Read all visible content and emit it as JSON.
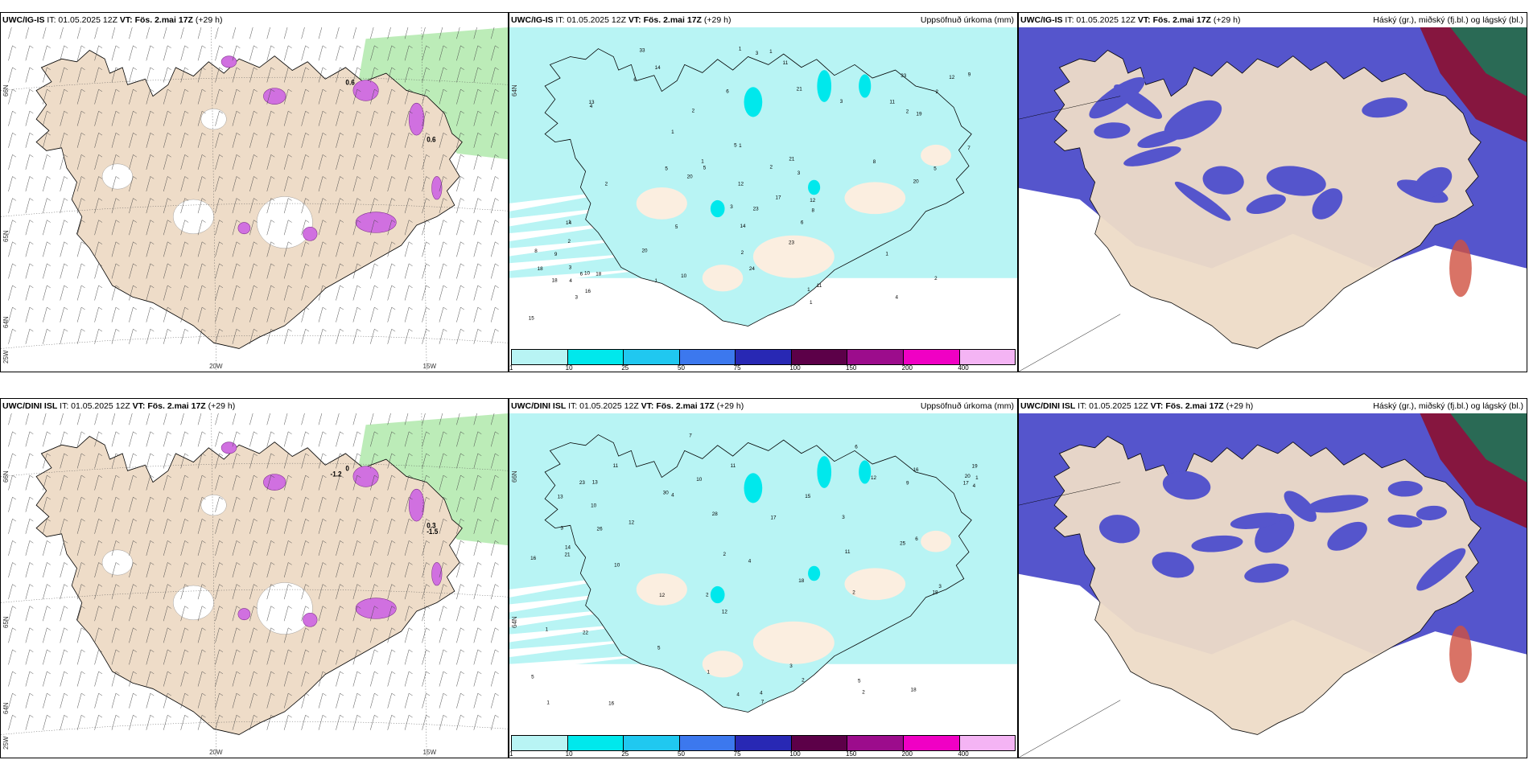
{
  "panels": [
    {
      "model": "UWC/IG-IS",
      "it": "IT: 01.05.2025 12Z",
      "vt": "VT: Fös. 2.mai 17Z",
      "lead": "(+29 h)",
      "right": "",
      "kind": "wind",
      "row": 0,
      "col": 0,
      "labels": [
        "0.6",
        "0.6"
      ],
      "lat": [
        "66N",
        "65N",
        "64N"
      ],
      "lon": [
        "25W",
        "20W",
        "15W"
      ]
    },
    {
      "model": "UWC/IG-IS",
      "it": "IT: 01.05.2025 12Z",
      "vt": "VT: Fös. 2.mai 17Z",
      "lead": "(+29 h)",
      "right": "Uppsöfnuð úrkoma (mm)",
      "kind": "precip",
      "row": 0,
      "col": 1,
      "lat": [
        "64N"
      ]
    },
    {
      "model": "UWC/IG-IS",
      "it": "IT: 01.05.2025 12Z",
      "vt": "VT: Fös. 2.mai 17Z",
      "lead": "(+29 h)",
      "right": "Háský (gr.), miðský (fj.bl.) og lágský (bl.)",
      "kind": "cloud",
      "row": 0,
      "col": 2
    },
    {
      "model": "UWC/DINI ISL",
      "it": "IT: 01.05.2025 12Z",
      "vt": "VT: Fös. 2.mai 17Z",
      "lead": "(+29 h)",
      "right": "",
      "kind": "wind",
      "row": 1,
      "col": 0,
      "labels": [
        "0",
        "0.3",
        "-1.2",
        "-1.5"
      ],
      "lat": [
        "66N",
        "65N",
        "64N"
      ],
      "lon": [
        "25W",
        "20W",
        "15W"
      ]
    },
    {
      "model": "UWC/DINI ISL",
      "it": "IT: 01.05.2025 12Z",
      "vt": "VT: Fös. 2.mai 17Z",
      "lead": "(+29 h)",
      "right": "Uppsöfnuð úrkoma (mm)",
      "kind": "precip",
      "row": 1,
      "col": 1,
      "lat": [
        "66N",
        "64N"
      ]
    },
    {
      "model": "UWC/DINI ISL",
      "it": "IT: 01.05.2025 12Z",
      "vt": "VT: Fös. 2.mai 17Z",
      "lead": "(+29 h)",
      "right": "Háský (gr.), miðský (fj.bl.) og lágský (bl.)",
      "kind": "cloud",
      "row": 1,
      "col": 2
    }
  ],
  "colorbar": {
    "ticks": [
      "1",
      "10",
      "25",
      "50",
      "75",
      "100",
      "150",
      "200",
      "400"
    ],
    "colors": [
      "#b8f4f4",
      "#00e8ec",
      "#20c8f0",
      "#3c78ee",
      "#2828b4",
      "#5c0048",
      "#9c0c8c",
      "#f000c4",
      "#f4b4f4"
    ]
  },
  "precip_values": {
    "top": [
      "6",
      "5",
      "5",
      "4",
      "2",
      "4",
      "3",
      "1",
      "5",
      "12",
      "11",
      "14",
      "13",
      "9",
      "10",
      "11",
      "16",
      "2",
      "1",
      "1",
      "1",
      "1",
      "8",
      "5",
      "3",
      "2",
      "20",
      "18",
      "20",
      "33",
      "17",
      "14",
      "24",
      "33",
      "23",
      "21",
      "23",
      "15",
      "12",
      "8",
      "3",
      "6",
      "7",
      "2",
      "20",
      "19",
      "21",
      "18",
      "12",
      "11",
      "5",
      "6",
      "3",
      "8",
      "10",
      "9",
      "3",
      "2",
      "4",
      "14",
      "18",
      "6",
      "3",
      "1",
      "1",
      "2",
      "2",
      "2",
      "1",
      "1",
      "1"
    ],
    "bottom": [
      "7",
      "4",
      "5",
      "4",
      "2",
      "12",
      "15",
      "16",
      "12",
      "13",
      "10",
      "17",
      "11",
      "14",
      "10",
      "6",
      "11",
      "4",
      "3",
      "18",
      "25",
      "30",
      "10",
      "19",
      "16",
      "23",
      "22",
      "26",
      "28",
      "18",
      "13",
      "3",
      "5",
      "21",
      "20",
      "16",
      "17",
      "18",
      "12",
      "12",
      "11",
      "2",
      "3",
      "6",
      "4",
      "9",
      "5",
      "3",
      "7",
      "2",
      "4",
      "1",
      "1",
      "1",
      "1",
      "2",
      "2"
    ]
  }
}
